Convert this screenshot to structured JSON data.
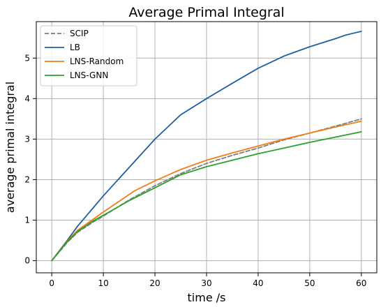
{
  "chart_data": {
    "type": "line",
    "title": "Average Primal Integral",
    "xlabel": "time /s",
    "ylabel": "average primal integral",
    "xlim": [
      -3,
      63
    ],
    "ylim": [
      -0.3,
      5.9
    ],
    "xticks": [
      0,
      10,
      20,
      30,
      40,
      50,
      60
    ],
    "yticks": [
      0,
      1,
      2,
      3,
      4,
      5
    ],
    "grid": true,
    "legend_position": "top-left",
    "series": [
      {
        "name": "SCIP",
        "color": "#7f7f7f",
        "dash": "dashed",
        "x": [
          0,
          3,
          5,
          8,
          10,
          15,
          20,
          25,
          30,
          35,
          40,
          45,
          50,
          55,
          60
        ],
        "y": [
          0,
          0.45,
          0.7,
          0.95,
          1.1,
          1.5,
          1.85,
          2.15,
          2.4,
          2.6,
          2.78,
          2.98,
          3.15,
          3.32,
          3.5
        ]
      },
      {
        "name": "LB",
        "color": "#1f5fa0",
        "dash": "solid",
        "x": [
          0,
          3,
          5,
          10,
          15,
          20,
          25,
          30,
          35,
          40,
          45,
          50,
          55,
          57,
          60
        ],
        "y": [
          0,
          0.5,
          0.85,
          1.6,
          2.3,
          3.0,
          3.6,
          4.0,
          4.38,
          4.75,
          5.05,
          5.28,
          5.48,
          5.57,
          5.66
        ]
      },
      {
        "name": "LNS-Random",
        "color": "#f07e1b",
        "dash": "solid",
        "x": [
          0,
          3,
          5,
          8,
          10,
          16,
          20,
          25,
          30,
          35,
          40,
          45,
          50,
          55,
          60
        ],
        "y": [
          0,
          0.48,
          0.75,
          1.02,
          1.2,
          1.72,
          1.97,
          2.25,
          2.48,
          2.66,
          2.83,
          3.0,
          3.15,
          3.3,
          3.44
        ]
      },
      {
        "name": "LNS-GNN",
        "color": "#2ca02c",
        "dash": "solid",
        "x": [
          0,
          3,
          5,
          8,
          10,
          15,
          20,
          25,
          30,
          35,
          40,
          45,
          50,
          55,
          60
        ],
        "y": [
          0,
          0.47,
          0.72,
          0.98,
          1.12,
          1.48,
          1.8,
          2.12,
          2.32,
          2.48,
          2.64,
          2.78,
          2.92,
          3.05,
          3.18
        ]
      }
    ]
  }
}
